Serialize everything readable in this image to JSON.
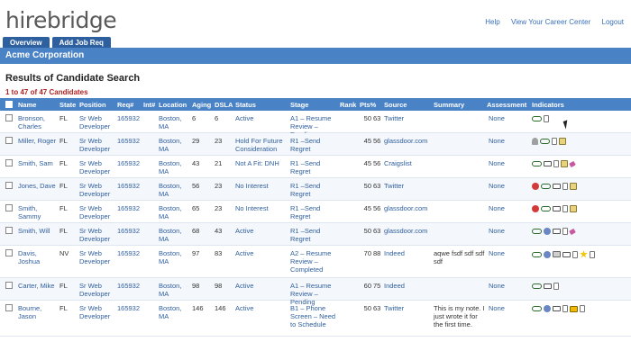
{
  "logo": "hirebridge",
  "top_links": [
    "Help",
    "View Your Career Center",
    "Logout"
  ],
  "nav_tabs": [
    "Overview",
    "Add Job Req"
  ],
  "company": "Acme Corporation",
  "results_title": "Results of Candidate Search",
  "results_count": "1 to 47 of 47 Candidates",
  "columns": {
    "name": "Name",
    "state": "State",
    "position": "Position",
    "req": "Req#",
    "int": "Int#",
    "location": "Location",
    "aging": "Aging",
    "dsla": "DSLA",
    "status": "Status",
    "stage": "Stage",
    "rank": "Rank",
    "pts": "Pts%",
    "source": "Source",
    "summary": "Summary",
    "assessment": "Assessment",
    "indicators": "Indicators"
  },
  "rows": [
    {
      "name": "Bronson, Charles",
      "state": "FL",
      "position": "Sr Web Developer",
      "req": "165932",
      "location": "Boston, MA",
      "aging": "6",
      "dsla": "6",
      "status": "Active",
      "stage": "A1 – Resume Review – Pending",
      "rank": "50",
      "pct": "63",
      "source": "Twitter",
      "summary": "",
      "assessment": "None",
      "icons": [
        "glasses-icon",
        "doc-icon"
      ]
    },
    {
      "name": "Miller, Roger",
      "state": "FL",
      "position": "Sr Web Developer",
      "req": "165932",
      "location": "Boston, MA",
      "aging": "29",
      "dsla": "23",
      "status": "Hold For Future Consideration",
      "stage": "R1 –Send Regret",
      "rank": "45",
      "pct": "56",
      "source": "glassdoor.com",
      "summary": "",
      "assessment": "None",
      "icons": [
        "person-icon",
        "glasses-icon",
        "doc-icon",
        "note-icon"
      ]
    },
    {
      "name": "Smith, Sam",
      "state": "FL",
      "position": "Sr Web Developer",
      "req": "165932",
      "location": "Boston, MA",
      "aging": "43",
      "dsla": "21",
      "status": "Not A Fit: DNH",
      "stage": "R1 –Send Regret",
      "rank": "45",
      "pct": "56",
      "source": "Craigslist",
      "summary": "",
      "assessment": "None",
      "icons": [
        "glasses-icon",
        "mail-icon",
        "doc-icon",
        "note-icon",
        "tag-icon"
      ]
    },
    {
      "name": "Jones, Dave",
      "state": "FL",
      "position": "Sr Web Developer",
      "req": "165932",
      "location": "Boston, MA",
      "aging": "56",
      "dsla": "23",
      "status": "No Interest",
      "stage": "R1 –Send Regret",
      "rank": "50",
      "pct": "63",
      "source": "Twitter",
      "summary": "",
      "assessment": "None",
      "icons": [
        "stop-icon",
        "glasses-icon",
        "mail-icon",
        "doc-icon",
        "note-icon"
      ]
    },
    {
      "name": "Smith, Sammy",
      "state": "FL",
      "position": "Sr Web Developer",
      "req": "165932",
      "location": "Boston, MA",
      "aging": "65",
      "dsla": "23",
      "status": "No Interest",
      "stage": "R1 –Send Regret",
      "rank": "45",
      "pct": "56",
      "source": "glassdoor.com",
      "summary": "",
      "assessment": "None",
      "icons": [
        "stop-icon",
        "glasses-icon",
        "mail-icon",
        "doc-icon",
        "note-icon"
      ]
    },
    {
      "name": "Smith, Will",
      "state": "FL",
      "position": "Sr Web Developer",
      "req": "165932",
      "location": "Boston, MA",
      "aging": "68",
      "dsla": "43",
      "status": "Active",
      "stage": "R1 –Send Regret",
      "rank": "50",
      "pct": "63",
      "source": "glassdoor.com",
      "summary": "",
      "assessment": "None",
      "icons": [
        "glasses-icon",
        "phone-icon",
        "mail-icon",
        "doc-icon",
        "tag-icon"
      ]
    },
    {
      "name": "Davis, Joshua",
      "state": "NV",
      "position": "Sr Web Developer",
      "req": "165932",
      "location": "Boston, MA",
      "aging": "97",
      "dsla": "83",
      "status": "Active",
      "stage": "A2 – Resume Review – Completed",
      "rank": "70",
      "pct": "88",
      "source": "Indeed",
      "summary": "aqwe fsdf sdf sdf sdf",
      "assessment": "None",
      "icons": [
        "glasses-icon",
        "phone-icon",
        "pencil-icon",
        "mail-icon",
        "doc-icon",
        "star-icon",
        "doc-icon"
      ]
    },
    {
      "name": "Carter, Mike",
      "state": "FL",
      "position": "Sr Web Developer",
      "req": "165932",
      "location": "Boston, MA",
      "aging": "98",
      "dsla": "98",
      "status": "Active",
      "stage": "A1 – Resume Review – Pending",
      "rank": "60",
      "pct": "75",
      "source": "Indeed",
      "summary": "",
      "assessment": "None",
      "icons": [
        "glasses-icon",
        "mail-icon",
        "doc-icon"
      ]
    },
    {
      "name": "Bourne, Jason",
      "state": "FL",
      "position": "Sr Web Developer",
      "req": "165932",
      "location": "Boston, MA",
      "aging": "146",
      "dsla": "146",
      "status": "Active",
      "stage": "B1 – Phone Screen – Need to Schedule",
      "rank": "50",
      "pct": "63",
      "source": "Twitter",
      "summary": "This is my note. I just wrote it for the first time.",
      "assessment": "None",
      "icons": [
        "glasses-icon",
        "phone-icon",
        "mail-icon",
        "doc-icon",
        "notebook-icon",
        "doc-icon"
      ]
    }
  ]
}
